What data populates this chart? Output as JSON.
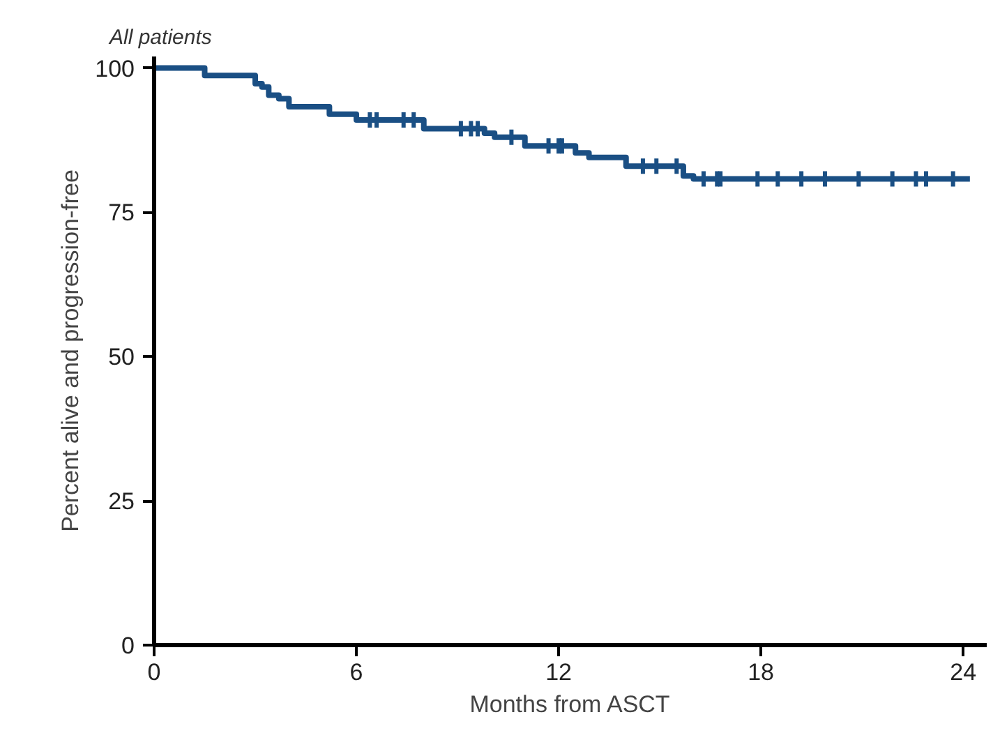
{
  "chart_data": {
    "type": "step",
    "title": "All patients",
    "xlabel": "Months from ASCT",
    "ylabel": "Percent alive and progression-free",
    "xlim": [
      0,
      24.7
    ],
    "ylim": [
      0,
      102
    ],
    "xticks": [
      0,
      6,
      12,
      18,
      24
    ],
    "yticks": [
      0,
      25,
      50,
      75,
      100
    ],
    "grid": false,
    "series": [
      {
        "color": "#1a4f84",
        "x": [
          0,
          1.5,
          3.0,
          3.2,
          3.4,
          3.7,
          4.0,
          5.2,
          6.0,
          8.0,
          9.8,
          10.1,
          11.0,
          12.5,
          12.9,
          14.0,
          15.7,
          16.0,
          24.2
        ],
        "values": [
          100,
          98.7,
          97.3,
          96.7,
          95.3,
          94.7,
          93.3,
          92.0,
          91.0,
          89.5,
          88.7,
          88.0,
          86.5,
          85.3,
          84.5,
          83.0,
          81.3,
          80.8,
          80.8
        ]
      },
      {
        "type": "scatter",
        "marker": "cross",
        "color": "#1a4f84",
        "x": [
          6.4,
          6.6,
          7.4,
          7.7,
          9.1,
          9.4,
          9.6,
          10.6,
          11.7,
          12.0,
          12.1,
          14.5,
          14.9,
          15.5,
          16.3,
          16.7,
          16.8,
          17.9,
          18.5,
          19.2,
          19.9,
          20.9,
          21.9,
          22.6,
          22.9,
          23.7
        ],
        "values": [
          91.0,
          91.0,
          91.0,
          91.0,
          89.5,
          89.5,
          89.5,
          88.0,
          86.5,
          86.5,
          86.5,
          83.0,
          83.0,
          83.0,
          80.8,
          80.8,
          80.8,
          80.8,
          80.8,
          80.8,
          80.8,
          80.8,
          80.8,
          80.8,
          80.8,
          80.8
        ]
      }
    ]
  }
}
